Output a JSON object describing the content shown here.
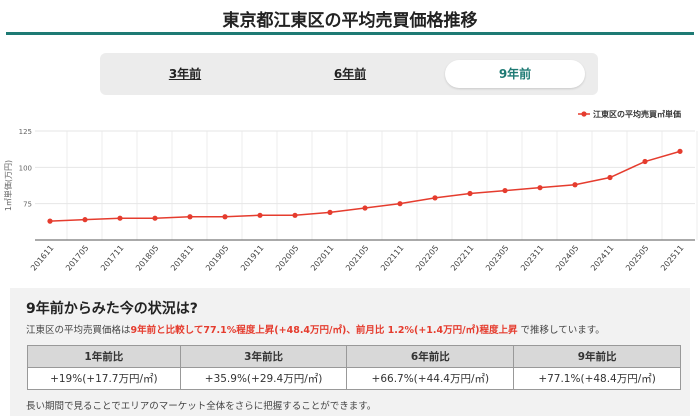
{
  "title": "東京都江東区の平均売買価格推移",
  "tabs": [
    {
      "label": "3年前"
    },
    {
      "label": "6年前"
    },
    {
      "label": "9年前",
      "active": true
    }
  ],
  "chart_data": {
    "type": "line",
    "legend": "江東区の平均売買㎡単価",
    "legend_position": "top-right",
    "ylabel": "1㎡単価(万円)",
    "ylim": [
      50,
      125
    ],
    "yticks": [
      75,
      100,
      125
    ],
    "color": "#e53c2e",
    "categories": [
      "201611",
      "201705",
      "201711",
      "201805",
      "201811",
      "201905",
      "201911",
      "202005",
      "202011",
      "202105",
      "202111",
      "202205",
      "202211",
      "202305",
      "202311",
      "202405",
      "202411",
      "202505",
      "202511"
    ],
    "values": [
      63,
      64,
      65,
      65,
      66,
      66,
      67,
      67,
      69,
      72,
      75,
      79,
      82,
      84,
      86,
      88,
      93,
      104,
      111
    ]
  },
  "summary": {
    "heading": "9年前からみた今の状況は?",
    "desc_prefix": "江東区の平均売買価格は",
    "desc_highlight": "9年前と比較して77.1%程度上昇(+48.4万円/㎡)、前月比 1.2%(+1.4万円/㎡)程度上昇",
    "desc_suffix": " で推移しています。",
    "headers": [
      "1年前比",
      "3年前比",
      "6年前比",
      "9年前比"
    ],
    "values": [
      "+19%(+17.7万円/㎡)",
      "+35.9%(+29.4万円/㎡)",
      "+66.7%(+44.4万円/㎡)",
      "+77.1%(+48.4万円/㎡)"
    ],
    "note": "長い期間で見ることでエリアのマーケット全体をさらに把握することができます。"
  }
}
